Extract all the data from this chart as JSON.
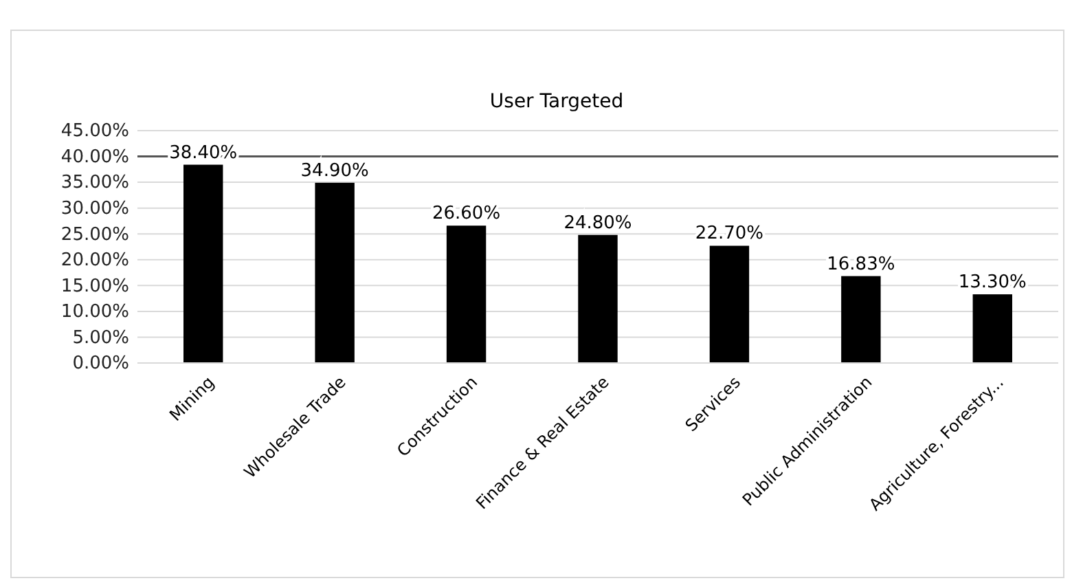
{
  "chart_data": {
    "type": "bar",
    "title": "User Targeted",
    "categories": [
      "Mining",
      "Wholesale Trade",
      "Construction",
      "Finance & Real Estate",
      "Services",
      "Public Administration",
      "Agriculture, Forestry..."
    ],
    "values": [
      38.4,
      34.9,
      26.6,
      24.8,
      22.7,
      16.83,
      13.3
    ],
    "value_labels": [
      "38.40%",
      "34.90%",
      "26.60%",
      "24.80%",
      "22.70%",
      "16.83%",
      "13.30%"
    ],
    "color": "#000000",
    "ylim": [
      0,
      45
    ],
    "yticks": [
      {
        "value": 0,
        "label": "0.00%"
      },
      {
        "value": 5,
        "label": "5.00%"
      },
      {
        "value": 10,
        "label": "10.00%"
      },
      {
        "value": 15,
        "label": "15.00%"
      },
      {
        "value": 20,
        "label": "20.00%"
      },
      {
        "value": 25,
        "label": "25.00%"
      },
      {
        "value": 30,
        "label": "30.00%"
      },
      {
        "value": 35,
        "label": "35.00%"
      },
      {
        "value": 40,
        "label": "40.00%"
      },
      {
        "value": 45,
        "label": "45.00%"
      }
    ],
    "grid": "y",
    "ref_lines": [
      {
        "axis": "y",
        "value": 40,
        "color": "#555555"
      }
    ]
  }
}
